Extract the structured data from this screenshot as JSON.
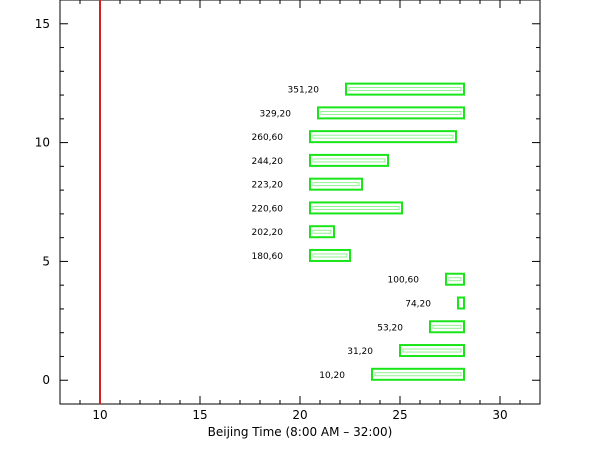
{
  "chart_data": {
    "type": "bar",
    "title": "",
    "xlabel": "Beijing Time (8:00 AM – 32:00)",
    "ylabel": "",
    "xlim": [
      8,
      32
    ],
    "ylim": [
      -1,
      16
    ],
    "x_ticks": [
      10,
      15,
      20,
      25,
      30
    ],
    "y_ticks": [
      0,
      5,
      10,
      15
    ],
    "grid": false,
    "reference_line": {
      "x": 10,
      "color": "#d62020"
    },
    "bar_color": "#19e619",
    "bars": [
      {
        "label": "10,20",
        "y": 0.25,
        "start": 23.6,
        "end": 28.2
      },
      {
        "label": "31,20",
        "y": 1.25,
        "start": 25.0,
        "end": 28.2
      },
      {
        "label": "53,20",
        "y": 2.25,
        "start": 26.5,
        "end": 28.2
      },
      {
        "label": "74,20",
        "y": 3.25,
        "start": 27.9,
        "end": 28.2
      },
      {
        "label": "100,60",
        "y": 4.25,
        "start": 27.3,
        "end": 28.2
      },
      {
        "label": "180,60",
        "y": 5.25,
        "start": 20.5,
        "end": 22.5
      },
      {
        "label": "202,20",
        "y": 6.25,
        "start": 20.5,
        "end": 21.7
      },
      {
        "label": "220,60",
        "y": 7.25,
        "start": 20.5,
        "end": 25.1
      },
      {
        "label": "223,20",
        "y": 8.25,
        "start": 20.5,
        "end": 23.1
      },
      {
        "label": "244,20",
        "y": 9.25,
        "start": 20.5,
        "end": 24.4
      },
      {
        "label": "260,60",
        "y": 10.25,
        "start": 20.5,
        "end": 27.8
      },
      {
        "label": "329,20",
        "y": 11.25,
        "start": 20.9,
        "end": 28.2
      },
      {
        "label": "351,20",
        "y": 12.25,
        "start": 22.3,
        "end": 28.2
      }
    ]
  }
}
